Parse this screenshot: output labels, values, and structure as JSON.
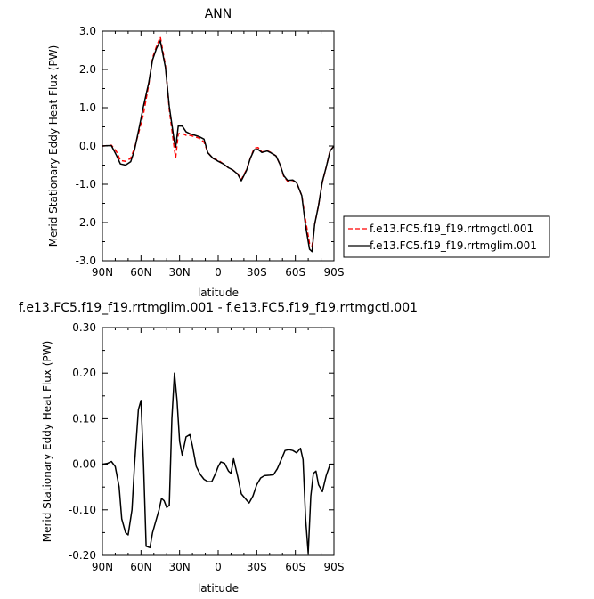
{
  "chart_data": [
    {
      "type": "line",
      "title": "ANN",
      "xlabel": "latitude",
      "ylabel": "Merid Stationary Eddy Heat Flux (PW)",
      "xlim": [
        90,
        -90
      ],
      "ylim": [
        -3.0,
        3.0
      ],
      "xticks": [
        90,
        60,
        30,
        0,
        -30,
        -60,
        -90
      ],
      "xtick_labels": [
        "90N",
        "60N",
        "30N",
        "0",
        "30S",
        "60S",
        "90S"
      ],
      "yticks": [
        3,
        2,
        1,
        0,
        -1,
        -2,
        -3
      ],
      "ytick_labels": [
        "3.0",
        "2.0",
        "1.0",
        "0.0",
        "-1.0",
        "-2.0",
        "-3.0"
      ],
      "legend_position": "right",
      "series": [
        {
          "name": "f.e13.FC5.f19_f19.rrtmgctl.001",
          "color": "#ff0000",
          "dash": "dashed",
          "x": [
            90,
            86,
            83,
            79,
            76,
            72,
            68,
            65,
            61,
            58,
            54,
            51,
            48,
            45,
            41,
            38,
            34,
            33,
            31,
            28,
            25,
            22,
            18,
            15,
            11,
            8,
            4,
            0,
            -4,
            -8,
            -11,
            -15,
            -18,
            -22,
            -25,
            -28,
            -31,
            -34,
            -38,
            -41,
            -45,
            -48,
            -51,
            -54,
            -58,
            -61,
            -65,
            -68,
            -71,
            -73,
            -75,
            -78,
            -81,
            -84,
            -87,
            -90
          ],
          "y": [
            0,
            0.01,
            0.02,
            -0.15,
            -0.38,
            -0.4,
            -0.32,
            -0.05,
            0.45,
            0.85,
            1.6,
            2.3,
            2.6,
            2.85,
            2.1,
            0.95,
            -0.1,
            -0.3,
            0.32,
            0.33,
            0.28,
            0.28,
            0.24,
            0.21,
            0.1,
            -0.17,
            -0.33,
            -0.37,
            -0.47,
            -0.57,
            -0.62,
            -0.72,
            -0.88,
            -0.62,
            -0.32,
            -0.06,
            -0.04,
            -0.16,
            -0.12,
            -0.17,
            -0.26,
            -0.48,
            -0.8,
            -0.92,
            -0.9,
            -0.96,
            -1.3,
            -1.95,
            -2.55,
            -2.62,
            -2.05,
            -1.55,
            -0.95,
            -0.55,
            -0.12,
            0
          ]
        },
        {
          "name": "f.e13.FC5.f19_f19.rrtmglim.001",
          "color": "#000000",
          "dash": "solid",
          "x": [
            90,
            86,
            83,
            79,
            76,
            72,
            68,
            65,
            61,
            58,
            54,
            51,
            48,
            45,
            41,
            38,
            34,
            33,
            31,
            28,
            25,
            22,
            18,
            15,
            11,
            8,
            4,
            0,
            -4,
            -8,
            -11,
            -15,
            -18,
            -22,
            -25,
            -28,
            -31,
            -34,
            -38,
            -41,
            -45,
            -48,
            -51,
            -54,
            -58,
            -61,
            -65,
            -68,
            -71,
            -73,
            -75,
            -78,
            -81,
            -84,
            -87,
            -90
          ],
          "y": [
            0,
            0.01,
            0.01,
            -0.25,
            -0.47,
            -0.5,
            -0.41,
            -0.1,
            0.55,
            1.05,
            1.65,
            2.25,
            2.55,
            2.75,
            2.05,
            1.03,
            0.1,
            -0.03,
            0.52,
            0.52,
            0.37,
            0.32,
            0.28,
            0.25,
            0.18,
            -0.18,
            -0.32,
            -0.4,
            -0.47,
            -0.57,
            -0.62,
            -0.73,
            -0.91,
            -0.64,
            -0.32,
            -0.1,
            -0.09,
            -0.17,
            -0.13,
            -0.18,
            -0.26,
            -0.48,
            -0.78,
            -0.9,
            -0.89,
            -0.96,
            -1.3,
            -2.1,
            -2.7,
            -2.76,
            -2.05,
            -1.55,
            -0.93,
            -0.55,
            -0.13,
            0
          ]
        }
      ]
    },
    {
      "type": "line",
      "title": "f.e13.FC5.f19_f19.rrtmglim.001 - f.e13.FC5.f19_f19.rrtmgctl.001",
      "xlabel": "latitude",
      "ylabel": "Merid Stationary Eddy Heat Flux (PW)",
      "xlim": [
        90,
        -90
      ],
      "ylim": [
        -0.2,
        0.3
      ],
      "xticks": [
        90,
        60,
        30,
        0,
        -30,
        -60,
        -90
      ],
      "xtick_labels": [
        "90N",
        "60N",
        "30N",
        "0",
        "30S",
        "60S",
        "90S"
      ],
      "yticks": [
        0.3,
        0.2,
        0.1,
        0,
        -0.1,
        -0.2
      ],
      "ytick_labels": [
        "0.30",
        "0.20",
        "0.10",
        "0.00",
        "-0.10",
        "-0.20"
      ],
      "series": [
        {
          "name": "",
          "color": "#000000",
          "dash": "solid",
          "x": [
            90,
            86,
            83,
            80,
            77,
            75,
            72,
            70,
            67,
            65,
            62,
            60,
            58,
            56,
            53,
            51,
            49,
            46,
            44,
            42,
            40,
            38,
            36,
            34,
            32,
            30,
            28,
            25,
            22,
            20,
            17,
            14,
            11,
            8,
            5,
            2,
            0,
            -2,
            -5,
            -8,
            -10,
            -12,
            -15,
            -18,
            -21,
            -24,
            -27,
            -30,
            -33,
            -36,
            -40,
            -43,
            -46,
            -49,
            -52,
            -55,
            -58,
            -61,
            -64,
            -66,
            -68,
            -70,
            -72,
            -74,
            -76,
            -78,
            -81,
            -84,
            -87,
            -90
          ],
          "y": [
            0,
            0.002,
            0.006,
            -0.005,
            -0.05,
            -0.12,
            -0.15,
            -0.155,
            -0.1,
            0,
            0.12,
            0.14,
            0,
            -0.18,
            -0.183,
            -0.15,
            -0.13,
            -0.1,
            -0.075,
            -0.08,
            -0.095,
            -0.09,
            0.1,
            0.2,
            0.14,
            0.05,
            0.02,
            0.06,
            0.065,
            0.04,
            -0.005,
            -0.022,
            -0.033,
            -0.038,
            -0.038,
            -0.02,
            -0.005,
            0.005,
            0.002,
            -0.015,
            -0.02,
            0.012,
            -0.025,
            -0.065,
            -0.075,
            -0.085,
            -0.07,
            -0.045,
            -0.03,
            -0.025,
            -0.024,
            -0.023,
            -0.01,
            0.01,
            0.03,
            0.032,
            0.03,
            0.025,
            0.035,
            0.01,
            -0.12,
            -0.195,
            -0.07,
            -0.02,
            -0.015,
            -0.045,
            -0.06,
            -0.025,
            0,
            0
          ]
        }
      ]
    }
  ]
}
